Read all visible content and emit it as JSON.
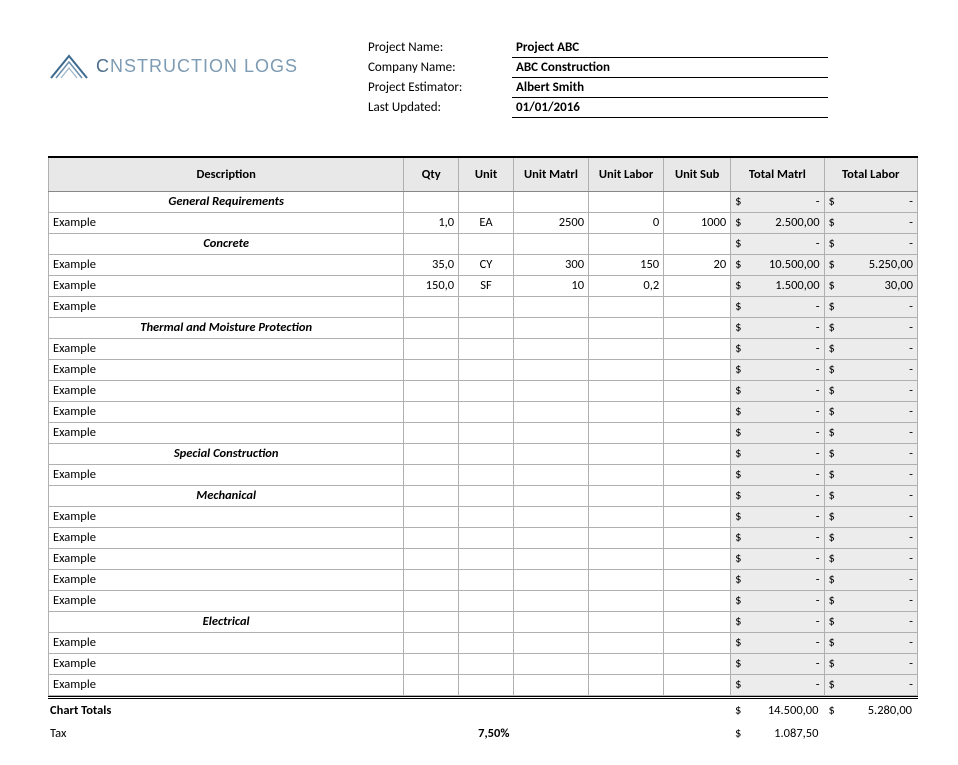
{
  "logo": {
    "text_1": "C",
    "text_2": "NSTRUCTION LOGS"
  },
  "meta": {
    "labels": {
      "project": "Project Name:",
      "company": "Company Name:",
      "estimator": "Project Estimator:",
      "updated": "Last Updated:"
    },
    "values": {
      "project": "Project ABC",
      "company": "ABC Construction",
      "estimator": "Albert Smith",
      "updated": "01/01/2016"
    }
  },
  "columns": {
    "desc": "Description",
    "qty": "Qty",
    "unit": "Unit",
    "unit_matrl": "Unit Matrl",
    "unit_labor": "Unit Labor",
    "unit_sub": "Unit Sub",
    "total_matrl": "Total Matrl",
    "total_labor": "Total Labor"
  },
  "currency": "$",
  "dash": "-",
  "rows": [
    {
      "type": "section",
      "desc": "General Requirements",
      "tm": "-",
      "tl": "-"
    },
    {
      "type": "item",
      "desc": "Example",
      "qty": "1,0",
      "unit": "EA",
      "um": "2500",
      "ul": "0",
      "us": "1000",
      "tm": "2.500,00",
      "tl": "-"
    },
    {
      "type": "section",
      "desc": "Concrete",
      "tm": "-",
      "tl": "-"
    },
    {
      "type": "item",
      "desc": "Example",
      "qty": "35,0",
      "unit": "CY",
      "um": "300",
      "ul": "150",
      "us": "20",
      "tm": "10.500,00",
      "tl": "5.250,00"
    },
    {
      "type": "item",
      "desc": "Example",
      "qty": "150,0",
      "unit": "SF",
      "um": "10",
      "ul": "0,2",
      "us": "",
      "tm": "1.500,00",
      "tl": "30,00"
    },
    {
      "type": "item",
      "desc": "Example",
      "qty": "",
      "unit": "",
      "um": "",
      "ul": "",
      "us": "",
      "tm": "-",
      "tl": "-"
    },
    {
      "type": "section",
      "desc": "Thermal and Moisture Protection",
      "tm": "-",
      "tl": "-"
    },
    {
      "type": "item",
      "desc": "Example",
      "qty": "",
      "unit": "",
      "um": "",
      "ul": "",
      "us": "",
      "tm": "-",
      "tl": "-"
    },
    {
      "type": "item",
      "desc": "Example",
      "qty": "",
      "unit": "",
      "um": "",
      "ul": "",
      "us": "",
      "tm": "-",
      "tl": "-"
    },
    {
      "type": "item",
      "desc": "Example",
      "qty": "",
      "unit": "",
      "um": "",
      "ul": "",
      "us": "",
      "tm": "-",
      "tl": "-"
    },
    {
      "type": "item",
      "desc": "Example",
      "qty": "",
      "unit": "",
      "um": "",
      "ul": "",
      "us": "",
      "tm": "-",
      "tl": "-"
    },
    {
      "type": "item",
      "desc": "Example",
      "qty": "",
      "unit": "",
      "um": "",
      "ul": "",
      "us": "",
      "tm": "-",
      "tl": "-"
    },
    {
      "type": "section",
      "desc": "Special Construction",
      "tm": "-",
      "tl": "-"
    },
    {
      "type": "item",
      "desc": "Example",
      "qty": "",
      "unit": "",
      "um": "",
      "ul": "",
      "us": "",
      "tm": "-",
      "tl": "-"
    },
    {
      "type": "section",
      "desc": "Mechanical",
      "tm": "-",
      "tl": "-"
    },
    {
      "type": "item",
      "desc": "Example",
      "qty": "",
      "unit": "",
      "um": "",
      "ul": "",
      "us": "",
      "tm": "-",
      "tl": "-"
    },
    {
      "type": "item",
      "desc": "Example",
      "qty": "",
      "unit": "",
      "um": "",
      "ul": "",
      "us": "",
      "tm": "-",
      "tl": "-"
    },
    {
      "type": "item",
      "desc": "Example",
      "qty": "",
      "unit": "",
      "um": "",
      "ul": "",
      "us": "",
      "tm": "-",
      "tl": "-"
    },
    {
      "type": "item",
      "desc": "Example",
      "qty": "",
      "unit": "",
      "um": "",
      "ul": "",
      "us": "",
      "tm": "-",
      "tl": "-"
    },
    {
      "type": "item",
      "desc": "Example",
      "qty": "",
      "unit": "",
      "um": "",
      "ul": "",
      "us": "",
      "tm": "-",
      "tl": "-"
    },
    {
      "type": "section",
      "desc": "Electrical",
      "tm": "-",
      "tl": "-"
    },
    {
      "type": "item",
      "desc": "Example",
      "qty": "",
      "unit": "",
      "um": "",
      "ul": "",
      "us": "",
      "tm": "-",
      "tl": "-"
    },
    {
      "type": "item",
      "desc": "Example",
      "qty": "",
      "unit": "",
      "um": "",
      "ul": "",
      "us": "",
      "tm": "-",
      "tl": "-"
    },
    {
      "type": "item",
      "desc": "Example",
      "qty": "",
      "unit": "",
      "um": "",
      "ul": "",
      "us": "",
      "tm": "-",
      "tl": "-"
    }
  ],
  "totals": {
    "chart_label": "Chart Totals",
    "chart_tm": "14.500,00",
    "chart_tl": "5.280,00",
    "tax_label": "Tax",
    "tax_rate": "7,50%",
    "tax_amount": "1.087,50"
  }
}
